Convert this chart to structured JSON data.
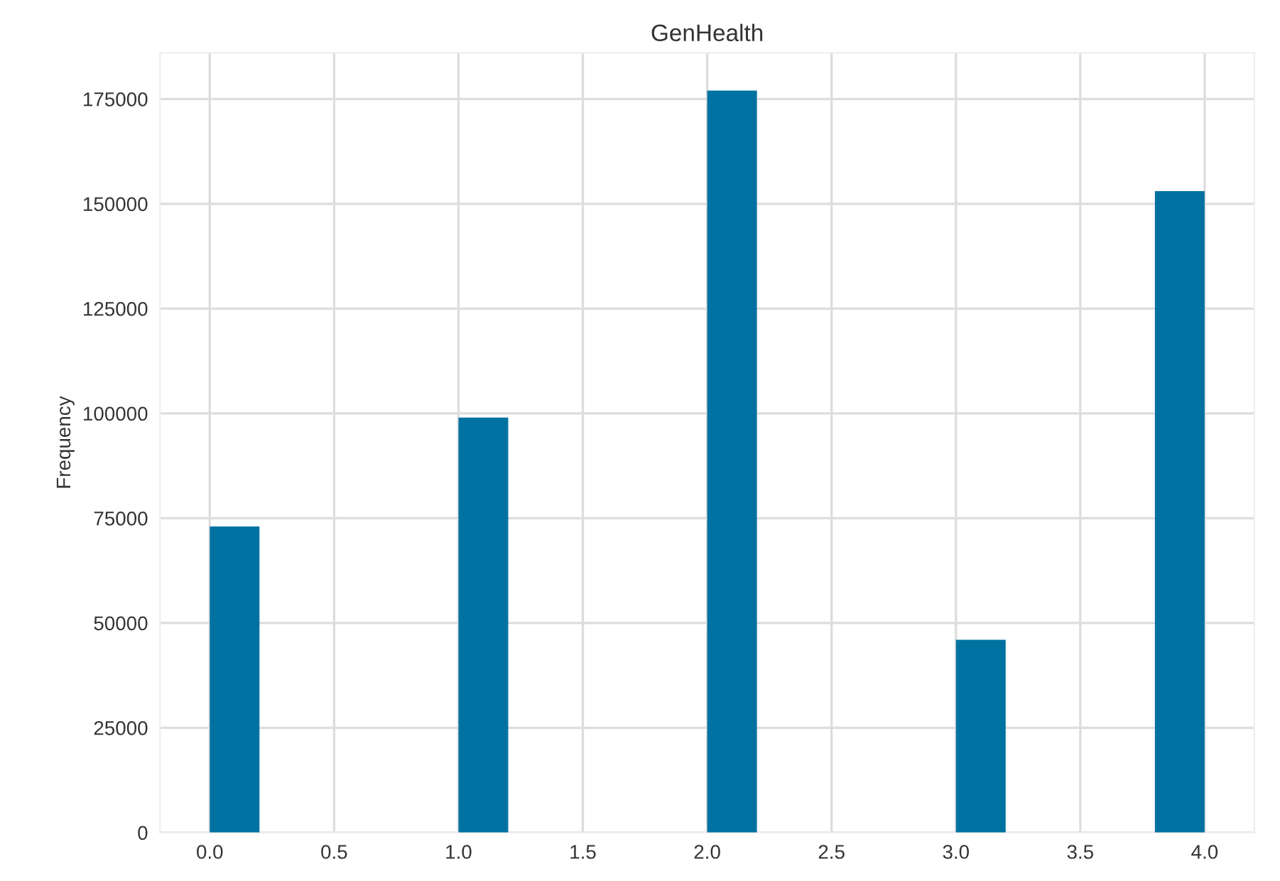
{
  "chart_data": {
    "type": "histogram",
    "title": "GenHealth",
    "ylabel": "Frequency",
    "bins": [
      0.0,
      0.2,
      0.4,
      0.6,
      0.8,
      1.0,
      1.2,
      1.4,
      1.6,
      1.8,
      2.0,
      2.2,
      2.4,
      2.6,
      2.8,
      3.0,
      3.2,
      3.4,
      3.6,
      3.8,
      4.0
    ],
    "values": [
      73000,
      0,
      0,
      0,
      0,
      99000,
      0,
      0,
      0,
      0,
      177000,
      0,
      0,
      0,
      0,
      46000,
      0,
      0,
      0,
      153000
    ],
    "color": "#0072a2",
    "xlim": [
      -0.2,
      4.2
    ],
    "xticks": [
      {
        "value": 0,
        "label": "0.0"
      },
      0.5,
      {
        "value": 1,
        "label": "1.0"
      },
      1.5,
      {
        "value": 2,
        "label": "2.0"
      },
      2.5,
      {
        "value": 3,
        "label": "3.0"
      },
      3.5,
      {
        "value": 4,
        "label": "4.0"
      }
    ],
    "ylim": [
      0,
      186000
    ],
    "yticks": [
      0,
      25000,
      50000,
      75000,
      100000,
      125000,
      150000,
      175000
    ],
    "grid": true
  }
}
